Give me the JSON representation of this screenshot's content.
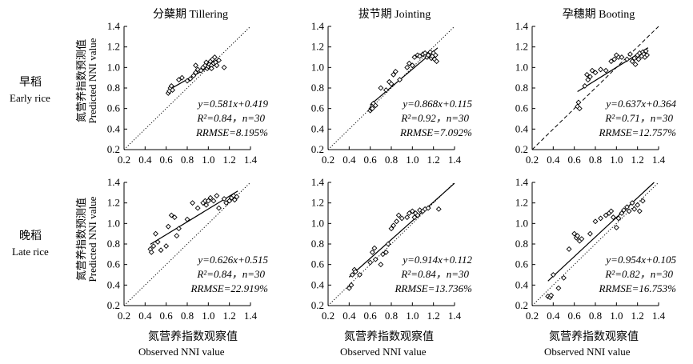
{
  "figure": {
    "row_labels": [
      {
        "zh": "早稻",
        "en": "Early rice"
      },
      {
        "zh": "晚稻",
        "en": "Late rice"
      }
    ],
    "ylabel_zh": "氮营养指数预测值",
    "ylabel_en": "Predicted NNI value",
    "xlabel_zh": "氮营养指数观察值",
    "xlabel_en": "Observed NNI value"
  },
  "chart_data": [
    {
      "type": "scatter",
      "title": "分蘖期 Tillering",
      "row": "Early rice",
      "xlim": [
        0.2,
        1.4
      ],
      "ylim": [
        0.2,
        1.4
      ],
      "ticks": [
        "0.2",
        "0.4",
        "0.6",
        "0.8",
        "1.0",
        "1.2",
        "1.4"
      ],
      "fit": {
        "slope": 0.581,
        "intercept": 0.419,
        "x_range": [
          0.62,
          1.12
        ],
        "style": "solid"
      },
      "one_to_one": "dotted",
      "eq_text": "y=0.581x+0.419",
      "r2_text": "R²=0.84，n=30",
      "rrmse_text": "RRMSE=8.195%",
      "points": [
        [
          0.62,
          0.75
        ],
        [
          0.63,
          0.77
        ],
        [
          0.64,
          0.8
        ],
        [
          0.65,
          0.82
        ],
        [
          0.66,
          0.78
        ],
        [
          0.72,
          0.88
        ],
        [
          0.75,
          0.9
        ],
        [
          0.8,
          0.87
        ],
        [
          0.83,
          0.89
        ],
        [
          0.86,
          0.92
        ],
        [
          0.88,
          0.95
        ],
        [
          0.88,
          1.02
        ],
        [
          0.9,
          0.98
        ],
        [
          0.93,
          0.97
        ],
        [
          0.95,
          1.0
        ],
        [
          0.97,
          1.02
        ],
        [
          0.98,
          1.05
        ],
        [
          0.99,
          0.99
        ],
        [
          1.0,
          1.01
        ],
        [
          1.01,
          1.03
        ],
        [
          1.02,
          1.06
        ],
        [
          1.03,
          1.02
        ],
        [
          1.03,
          0.99
        ],
        [
          1.04,
          1.08
        ],
        [
          1.05,
          1.04
        ],
        [
          1.06,
          1.1
        ],
        [
          1.07,
          1.05
        ],
        [
          1.08,
          1.02
        ],
        [
          1.1,
          1.07
        ],
        [
          1.15,
          1.0
        ]
      ]
    },
    {
      "type": "scatter",
      "title": "拔节期 Jointing",
      "row": "Early rice",
      "xlim": [
        0.2,
        1.4
      ],
      "ylim": [
        0.2,
        1.4
      ],
      "ticks": [
        "0.2",
        "0.4",
        "0.6",
        "0.8",
        "1.0",
        "1.2",
        "1.4"
      ],
      "fit": {
        "slope": 0.868,
        "intercept": 0.115,
        "x_range": [
          0.6,
          1.24
        ],
        "style": "solid"
      },
      "one_to_one": "dotted",
      "eq_text": "y=0.868x+0.115",
      "r2_text": "R²=0.92，n=30",
      "rrmse_text": "RRMSE=7.092%",
      "points": [
        [
          0.6,
          0.58
        ],
        [
          0.61,
          0.6
        ],
        [
          0.62,
          0.62
        ],
        [
          0.63,
          0.65
        ],
        [
          0.62,
          0.6
        ],
        [
          0.65,
          0.63
        ],
        [
          0.7,
          0.8
        ],
        [
          0.75,
          0.78
        ],
        [
          0.78,
          0.86
        ],
        [
          0.8,
          0.84
        ],
        [
          0.82,
          0.93
        ],
        [
          0.84,
          0.96
        ],
        [
          0.88,
          0.88
        ],
        [
          0.95,
          1.0
        ],
        [
          0.97,
          1.04
        ],
        [
          1.0,
          1.02
        ],
        [
          1.02,
          1.1
        ],
        [
          1.05,
          1.12
        ],
        [
          1.07,
          1.11
        ],
        [
          1.1,
          1.13
        ],
        [
          1.12,
          1.14
        ],
        [
          1.14,
          1.1
        ],
        [
          1.15,
          1.12
        ],
        [
          1.17,
          1.15
        ],
        [
          1.18,
          1.09
        ],
        [
          1.19,
          1.11
        ],
        [
          1.2,
          1.14
        ],
        [
          1.21,
          1.08
        ],
        [
          1.22,
          1.12
        ],
        [
          1.23,
          1.06
        ]
      ]
    },
    {
      "type": "scatter",
      "title": "孕穗期 Booting",
      "row": "Early rice",
      "xlim": [
        0.2,
        1.4
      ],
      "ylim": [
        0.2,
        1.4
      ],
      "ticks": [
        "0.2",
        "0.4",
        "0.6",
        "0.8",
        "1.0",
        "1.2",
        "1.4"
      ],
      "fit": {
        "slope": 0.637,
        "intercept": 0.364,
        "x_range": [
          0.63,
          1.3
        ],
        "style": "solid"
      },
      "one_to_one": "dashed",
      "eq_text": "y=0.637x+0.364",
      "r2_text": "R²=0.71，n=30",
      "rrmse_text": "RRMSE=12.757%",
      "points": [
        [
          0.63,
          0.62
        ],
        [
          0.64,
          0.66
        ],
        [
          0.65,
          0.6
        ],
        [
          0.7,
          0.82
        ],
        [
          0.72,
          0.93
        ],
        [
          0.73,
          0.88
        ],
        [
          0.75,
          0.91
        ],
        [
          0.77,
          0.97
        ],
        [
          0.8,
          0.95
        ],
        [
          0.85,
          0.98
        ],
        [
          0.9,
          0.97
        ],
        [
          0.95,
          1.06
        ],
        [
          0.98,
          1.08
        ],
        [
          1.0,
          1.12
        ],
        [
          1.02,
          1.1
        ],
        [
          1.05,
          1.1
        ],
        [
          1.1,
          1.08
        ],
        [
          1.13,
          1.13
        ],
        [
          1.15,
          1.06
        ],
        [
          1.17,
          1.09
        ],
        [
          1.18,
          1.03
        ],
        [
          1.2,
          1.12
        ],
        [
          1.21,
          1.08
        ],
        [
          1.22,
          1.14
        ],
        [
          1.24,
          1.11
        ],
        [
          1.25,
          1.15
        ],
        [
          1.26,
          1.13
        ],
        [
          1.27,
          1.1
        ],
        [
          1.28,
          1.16
        ],
        [
          1.29,
          1.12
        ]
      ]
    },
    {
      "type": "scatter",
      "title": "",
      "row": "Late rice",
      "xlim": [
        0.2,
        1.4
      ],
      "ylim": [
        0.2,
        1.4
      ],
      "ticks": [
        "0.2",
        "0.4",
        "0.6",
        "0.8",
        "1.0",
        "1.2",
        "1.4"
      ],
      "fit": {
        "slope": 0.626,
        "intercept": 0.515,
        "x_range": [
          0.45,
          1.28
        ],
        "style": "solid"
      },
      "one_to_one": "dotted",
      "eq_text": "y=0.626x+0.515",
      "r2_text": "R²=0.84，n=30",
      "rrmse_text": "RRMSE=22.919%",
      "points": [
        [
          0.45,
          0.75
        ],
        [
          0.46,
          0.72
        ],
        [
          0.48,
          0.78
        ],
        [
          0.5,
          0.9
        ],
        [
          0.52,
          0.82
        ],
        [
          0.55,
          0.74
        ],
        [
          0.6,
          0.78
        ],
        [
          0.62,
          0.97
        ],
        [
          0.65,
          1.08
        ],
        [
          0.68,
          1.06
        ],
        [
          0.7,
          0.88
        ],
        [
          0.72,
          0.95
        ],
        [
          0.8,
          1.04
        ],
        [
          0.85,
          1.2
        ],
        [
          0.9,
          1.15
        ],
        [
          0.95,
          1.2
        ],
        [
          0.97,
          1.22
        ],
        [
          0.98,
          1.18
        ],
        [
          1.0,
          1.22
        ],
        [
          1.02,
          1.25
        ],
        [
          1.05,
          1.22
        ],
        [
          1.08,
          1.27
        ],
        [
          1.1,
          1.15
        ],
        [
          1.15,
          1.24
        ],
        [
          1.17,
          1.2
        ],
        [
          1.2,
          1.22
        ],
        [
          1.22,
          1.25
        ],
        [
          1.24,
          1.27
        ],
        [
          1.25,
          1.23
        ],
        [
          1.27,
          1.26
        ]
      ]
    },
    {
      "type": "scatter",
      "title": "",
      "row": "Late rice",
      "xlim": [
        0.2,
        1.4
      ],
      "ylim": [
        0.2,
        1.4
      ],
      "ticks": [
        "0.2",
        "0.4",
        "0.6",
        "0.8",
        "1.0",
        "1.2",
        "1.4"
      ],
      "fit": {
        "slope": 0.914,
        "intercept": 0.112,
        "x_range": [
          0.4,
          1.4
        ],
        "style": "solid"
      },
      "one_to_one": "dotted",
      "eq_text": "y=0.914x+0.112",
      "r2_text": "R²=0.84，n=30",
      "rrmse_text": "RRMSE=13.736%",
      "points": [
        [
          0.4,
          0.37
        ],
        [
          0.42,
          0.4
        ],
        [
          0.43,
          0.5
        ],
        [
          0.45,
          0.55
        ],
        [
          0.46,
          0.53
        ],
        [
          0.5,
          0.5
        ],
        [
          0.6,
          0.62
        ],
        [
          0.62,
          0.72
        ],
        [
          0.64,
          0.76
        ],
        [
          0.65,
          0.65
        ],
        [
          0.7,
          0.6
        ],
        [
          0.72,
          0.7
        ],
        [
          0.75,
          0.72
        ],
        [
          0.77,
          0.8
        ],
        [
          0.8,
          0.95
        ],
        [
          0.82,
          0.98
        ],
        [
          0.85,
          1.02
        ],
        [
          0.87,
          1.08
        ],
        [
          0.9,
          1.05
        ],
        [
          0.95,
          1.06
        ],
        [
          0.97,
          1.1
        ],
        [
          1.0,
          1.12
        ],
        [
          1.02,
          1.06
        ],
        [
          1.03,
          1.1
        ],
        [
          1.05,
          1.08
        ],
        [
          1.07,
          1.13
        ],
        [
          1.1,
          1.12
        ],
        [
          1.12,
          1.14
        ],
        [
          1.15,
          1.15
        ],
        [
          1.25,
          1.14
        ]
      ]
    },
    {
      "type": "scatter",
      "title": "",
      "row": "Late rice",
      "xlim": [
        0.2,
        1.4
      ],
      "ylim": [
        0.2,
        1.4
      ],
      "ticks": [
        "0.2",
        "0.4",
        "0.6",
        "0.8",
        "1.0",
        "1.2",
        "1.4"
      ],
      "fit": {
        "slope": 0.954,
        "intercept": 0.105,
        "x_range": [
          0.35,
          1.4
        ],
        "style": "solid"
      },
      "one_to_one": "dotted",
      "eq_text": "y=0.954x+0.105",
      "r2_text": "R²=0.82，n=30",
      "rrmse_text": "RRMSE=16.753%",
      "points": [
        [
          0.35,
          0.29
        ],
        [
          0.37,
          0.28
        ],
        [
          0.38,
          0.3
        ],
        [
          0.4,
          0.5
        ],
        [
          0.45,
          0.37
        ],
        [
          0.5,
          0.47
        ],
        [
          0.55,
          0.75
        ],
        [
          0.6,
          0.9
        ],
        [
          0.62,
          0.86
        ],
        [
          0.63,
          0.88
        ],
        [
          0.65,
          0.83
        ],
        [
          0.67,
          0.85
        ],
        [
          0.75,
          0.9
        ],
        [
          0.8,
          1.02
        ],
        [
          0.85,
          1.05
        ],
        [
          0.9,
          1.08
        ],
        [
          0.93,
          1.1
        ],
        [
          0.95,
          1.12
        ],
        [
          0.97,
          1.06
        ],
        [
          1.0,
          0.96
        ],
        [
          1.02,
          1.05
        ],
        [
          1.05,
          1.1
        ],
        [
          1.07,
          1.13
        ],
        [
          1.1,
          1.16
        ],
        [
          1.12,
          1.12
        ],
        [
          1.15,
          1.2
        ],
        [
          1.17,
          1.14
        ],
        [
          1.2,
          1.18
        ],
        [
          1.22,
          1.12
        ],
        [
          1.25,
          1.22
        ]
      ]
    }
  ]
}
